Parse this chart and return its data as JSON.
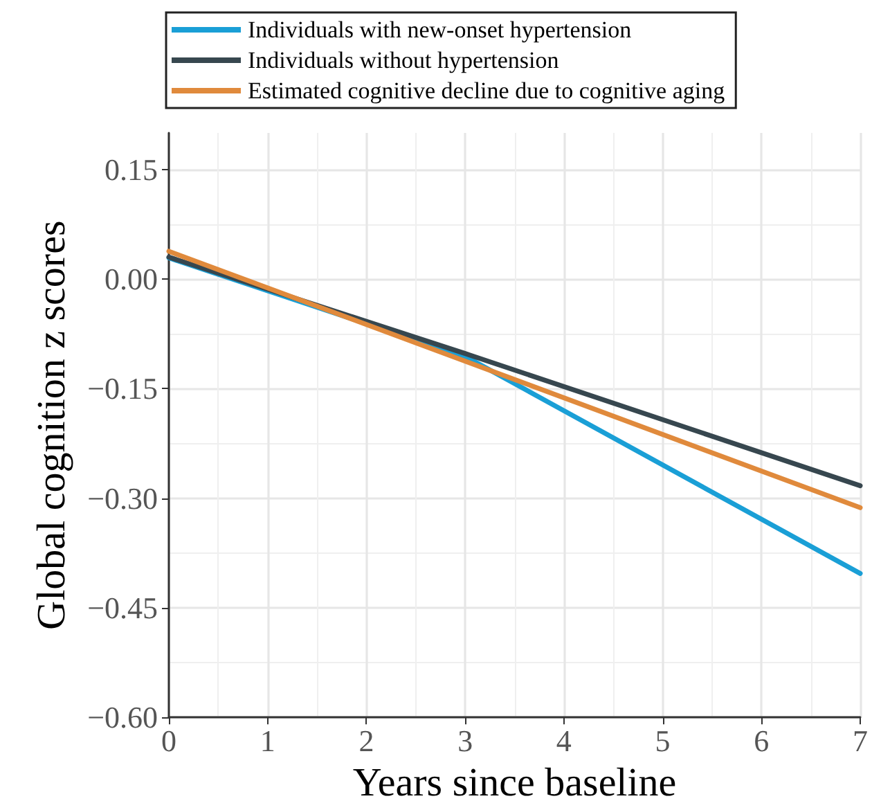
{
  "chart_data": {
    "type": "line",
    "xlabel": "Years since baseline",
    "ylabel": "Global cognition z scores",
    "xlim": [
      0,
      7
    ],
    "xticks": [
      0,
      1,
      2,
      3,
      4,
      5,
      6,
      7
    ],
    "ylim": [
      -0.6,
      0.2
    ],
    "yticks": [
      {
        "value": -0.6,
        "label": "−0.60"
      },
      {
        "value": -0.45,
        "label": "−0.45"
      },
      {
        "value": -0.3,
        "label": "−0.30"
      },
      {
        "value": -0.15,
        "label": "−0.15"
      },
      {
        "value": 0,
        "label": "0.00"
      },
      {
        "value": 0.15,
        "label": "0.15"
      }
    ],
    "grid": true,
    "legend": "top",
    "marker": "none",
    "line_style": "solid",
    "series": [
      {
        "name": "Individuals with new-onset hypertension",
        "color": "#1a9fd6",
        "x": [
          0,
          3,
          7
        ],
        "values": [
          0.029,
          -0.106,
          -0.403
        ]
      },
      {
        "name": "Individuals without hypertension",
        "color": "#37474f",
        "x": [
          0,
          3,
          7
        ],
        "values": [
          0.03,
          -0.102,
          -0.283
        ]
      },
      {
        "name": "Estimated cognitive decline due to cognitive aging",
        "color": "#e08a3c",
        "x": [
          0,
          7
        ],
        "values": [
          0.038,
          -0.313
        ]
      }
    ]
  }
}
